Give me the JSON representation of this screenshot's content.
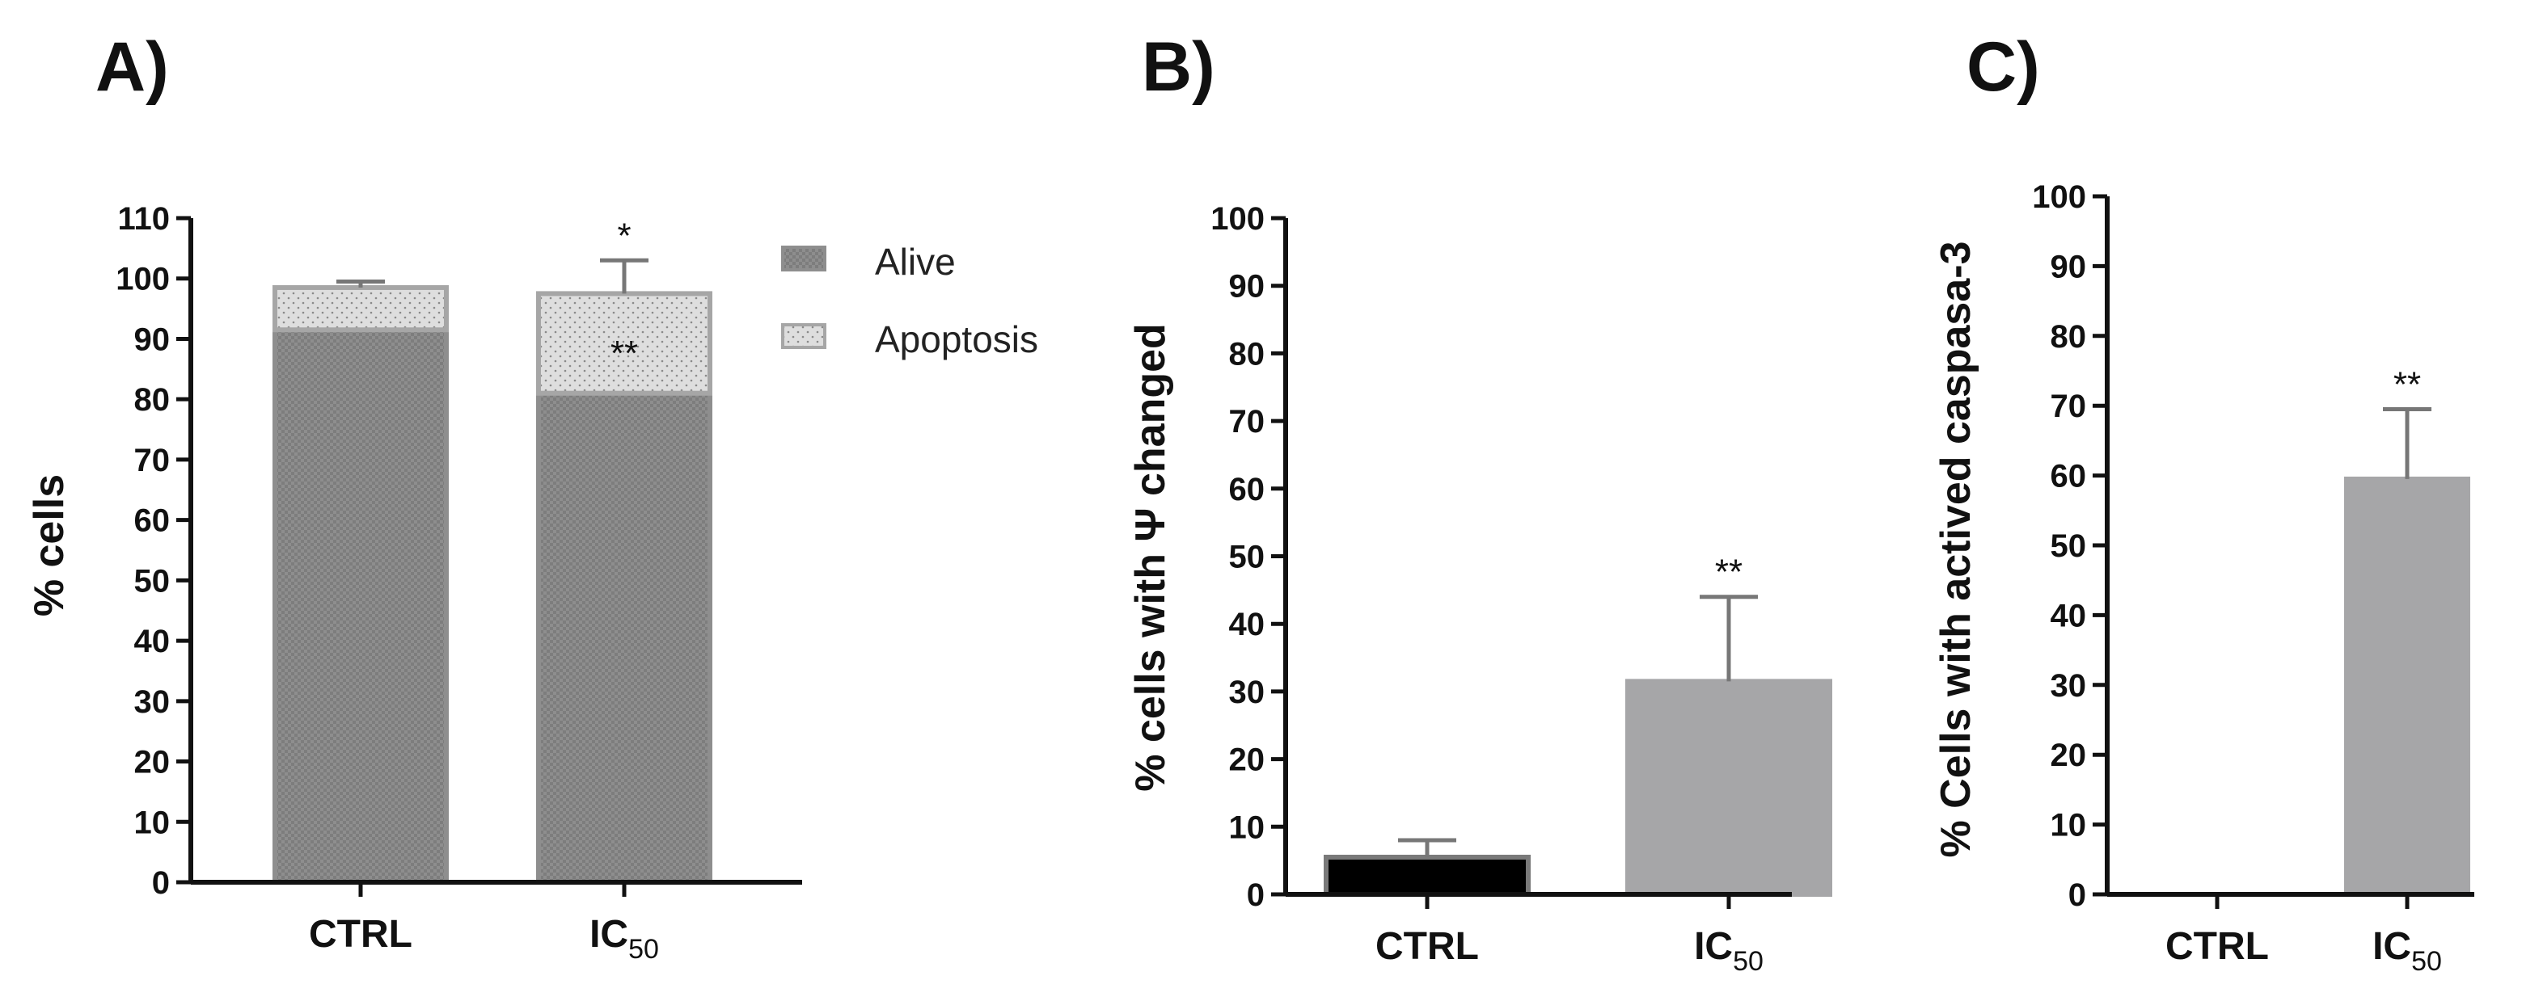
{
  "chart_data": [
    {
      "id": "A",
      "panel_label": "A)",
      "type": "bar",
      "stacked": true,
      "title": "",
      "xlabel": "",
      "ylabel": "% cells",
      "ylim": [
        0,
        110
      ],
      "yticks": [
        0,
        10,
        20,
        30,
        40,
        50,
        60,
        70,
        80,
        90,
        100,
        110
      ],
      "categories": [
        "CTRL",
        "IC50"
      ],
      "category_labels": [
        {
          "main": "CTRL",
          "sub": ""
        },
        {
          "main": "IC",
          "sub": "50"
        }
      ],
      "series": [
        {
          "name": "Alive",
          "values": [
            91.5,
            81
          ],
          "errors": [
            1,
            2.5
          ],
          "labels": [
            "",
            "**"
          ],
          "color": "#8e8e8e"
        },
        {
          "name": "Apoptosis",
          "values": [
            7,
            16.5
          ],
          "errors": [
            1,
            5.5
          ],
          "labels": [
            "",
            "*"
          ],
          "color": "#d9d9d9"
        }
      ],
      "legend": {
        "position": "top-right",
        "entries": [
          "Alive",
          "Apoptosis"
        ]
      }
    },
    {
      "id": "B",
      "panel_label": "B)",
      "type": "bar",
      "title": "",
      "xlabel": "",
      "ylabel": "% cells with Ψ changed",
      "ylim": [
        0,
        100
      ],
      "yticks": [
        0,
        10,
        20,
        30,
        40,
        50,
        60,
        70,
        80,
        90,
        100
      ],
      "categories": [
        "CTRL",
        "IC50"
      ],
      "category_labels": [
        {
          "main": "CTRL",
          "sub": ""
        },
        {
          "main": "IC",
          "sub": "50"
        }
      ],
      "values": [
        5.5,
        31.5
      ],
      "errors": [
        2.5,
        12.5
      ],
      "labels": [
        "",
        "**"
      ],
      "colors": [
        "#000000",
        "#a6a6a8"
      ]
    },
    {
      "id": "C",
      "panel_label": "C)",
      "type": "bar",
      "title": "",
      "xlabel": "",
      "ylabel": "% Cells with actived  caspasa-3",
      "ylim": [
        0,
        100
      ],
      "yticks": [
        0,
        10,
        20,
        30,
        40,
        50,
        60,
        70,
        80,
        90,
        100
      ],
      "categories": [
        "CTRL",
        "IC50"
      ],
      "category_labels": [
        {
          "main": "CTRL",
          "sub": ""
        },
        {
          "main": "IC",
          "sub": "50"
        }
      ],
      "values": [
        0,
        59.5
      ],
      "errors": [
        0,
        10
      ],
      "labels": [
        "",
        "**"
      ],
      "colors": [
        "#a6a6a8",
        "#a6a6a8"
      ]
    }
  ]
}
